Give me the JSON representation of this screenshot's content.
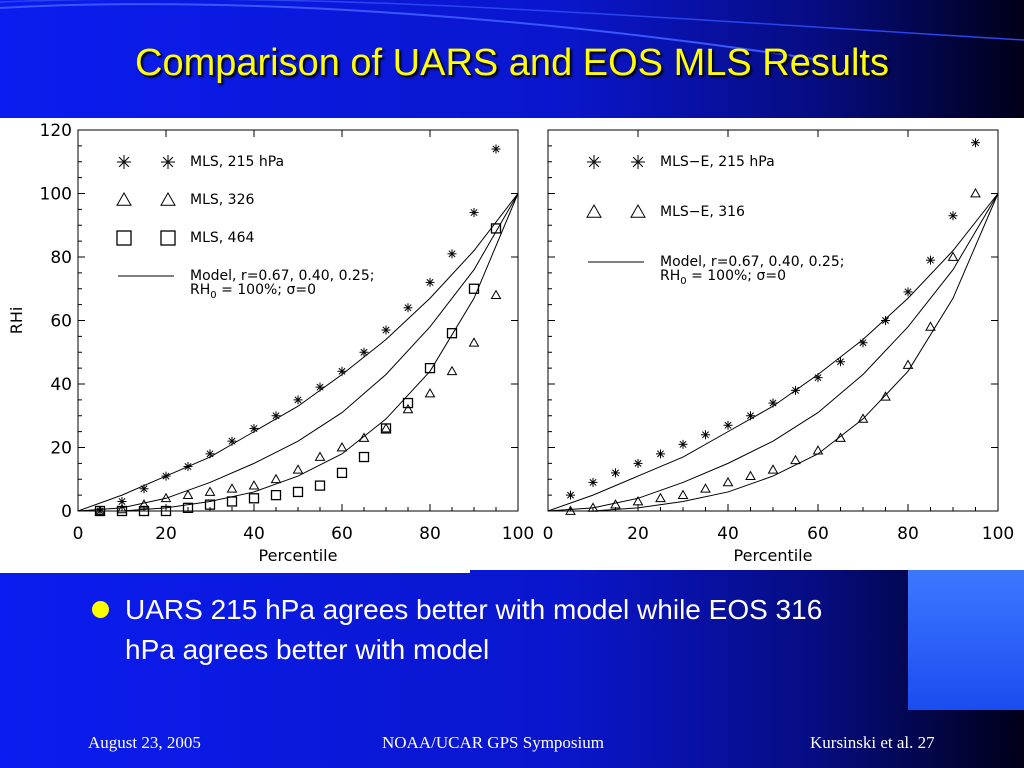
{
  "slide": {
    "title": "Comparison of UARS and EOS MLS Results",
    "bullet": "UARS 215 hPa agrees better with model while EOS 316 hPa agrees better with model",
    "footer_left": "August 23, 2005",
    "footer_center": "NOAA/UCAR GPS Symposium",
    "footer_right": "Kursinski et al. 27",
    "colors": {
      "title": "#ffff00",
      "bullet": "#ffff00",
      "background": "#0a16cc"
    }
  },
  "chart_data": [
    {
      "type": "scatter",
      "title": "",
      "xlabel": "Percentile",
      "ylabel": "RHi",
      "xlim": [
        0,
        100
      ],
      "ylim": [
        0,
        120
      ],
      "xticks": [
        "0",
        "20",
        "40",
        "60",
        "80",
        "100"
      ],
      "yticks": [
        "0",
        "20",
        "40",
        "60",
        "80",
        "100",
        "120"
      ],
      "legend_position": "top-left",
      "series": [
        {
          "name": "MLS, 215 hPa",
          "marker": "asterisk",
          "x": [
            5,
            10,
            15,
            20,
            25,
            30,
            35,
            40,
            45,
            50,
            55,
            60,
            65,
            70,
            75,
            80,
            85,
            90,
            95
          ],
          "y": [
            0,
            3,
            7,
            11,
            14,
            18,
            22,
            26,
            30,
            35,
            39,
            44,
            50,
            57,
            64,
            72,
            81,
            94,
            114
          ]
        },
        {
          "name": "MLS, 326",
          "marker": "triangle",
          "x": [
            5,
            10,
            15,
            20,
            25,
            30,
            35,
            40,
            45,
            50,
            55,
            60,
            65,
            70,
            75,
            80,
            85,
            90,
            95
          ],
          "y": [
            0,
            0.5,
            2,
            4,
            5,
            6,
            7,
            8,
            10,
            13,
            17,
            20,
            23,
            26,
            32,
            37,
            44,
            53,
            68
          ]
        },
        {
          "name": "MLS, 464",
          "marker": "square",
          "x": [
            5,
            10,
            15,
            20,
            25,
            30,
            35,
            40,
            45,
            50,
            55,
            60,
            65,
            70,
            75,
            80,
            85,
            90,
            95
          ],
          "y": [
            0,
            0,
            0,
            0,
            1,
            2,
            3,
            4,
            5,
            6,
            8,
            12,
            17,
            26,
            34,
            45,
            56,
            70,
            89
          ]
        },
        {
          "name": "Model, r=0.67, 0.40, 0.25; RH0 = 100%; σ=0",
          "marker": "line",
          "curves": [
            {
              "r": 0.67,
              "x": [
                0,
                10,
                20,
                30,
                40,
                50,
                60,
                70,
                80,
                90,
                100
              ],
              "y": [
                0,
                5,
                11,
                17,
                25,
                33,
                43,
                54,
                67,
                82,
                100
              ]
            },
            {
              "r": 0.4,
              "x": [
                0,
                10,
                20,
                30,
                40,
                50,
                60,
                70,
                80,
                90,
                100
              ],
              "y": [
                0,
                1,
                4,
                9,
                15,
                22,
                31,
                43,
                58,
                76,
                100
              ]
            },
            {
              "r": 0.25,
              "x": [
                0,
                10,
                20,
                30,
                40,
                50,
                60,
                70,
                80,
                90,
                100
              ],
              "y": [
                0,
                0,
                1,
                3,
                6,
                11,
                18,
                29,
                44,
                67,
                100
              ]
            }
          ]
        }
      ],
      "legend": {
        "sub_label": "RH0 = 100%; σ=0"
      }
    },
    {
      "type": "scatter",
      "title": "",
      "xlabel": "Percentile",
      "ylabel": "",
      "xlim": [
        0,
        100
      ],
      "ylim": [
        0,
        120
      ],
      "xticks": [
        "0",
        "20",
        "40",
        "60",
        "80",
        "100"
      ],
      "legend_position": "top-left",
      "series": [
        {
          "name": "MLS−E, 215 hPa",
          "marker": "asterisk",
          "x": [
            5,
            10,
            15,
            20,
            25,
            30,
            35,
            40,
            45,
            50,
            55,
            60,
            65,
            70,
            75,
            80,
            85,
            90,
            95
          ],
          "y": [
            5,
            9,
            12,
            15,
            18,
            21,
            24,
            27,
            30,
            34,
            38,
            42,
            47,
            53,
            60,
            69,
            79,
            93,
            116
          ]
        },
        {
          "name": "MLS−E, 316",
          "marker": "triangle",
          "x": [
            5,
            10,
            15,
            20,
            25,
            30,
            35,
            40,
            45,
            50,
            55,
            60,
            65,
            70,
            75,
            80,
            85,
            90,
            95
          ],
          "y": [
            0,
            1,
            2,
            3,
            4,
            5,
            7,
            9,
            11,
            13,
            16,
            19,
            23,
            29,
            36,
            46,
            58,
            80,
            100
          ]
        },
        {
          "name": "Model, r=0.67, 0.40, 0.25; RH0 = 100%; σ=0",
          "marker": "line",
          "curves": [
            {
              "r": 0.67,
              "x": [
                0,
                10,
                20,
                30,
                40,
                50,
                60,
                70,
                80,
                90,
                100
              ],
              "y": [
                0,
                5,
                11,
                17,
                25,
                33,
                43,
                54,
                67,
                82,
                100
              ]
            },
            {
              "r": 0.4,
              "x": [
                0,
                10,
                20,
                30,
                40,
                50,
                60,
                70,
                80,
                90,
                100
              ],
              "y": [
                0,
                1,
                4,
                9,
                15,
                22,
                31,
                43,
                58,
                76,
                100
              ]
            },
            {
              "r": 0.25,
              "x": [
                0,
                10,
                20,
                30,
                40,
                50,
                60,
                70,
                80,
                90,
                100
              ],
              "y": [
                0,
                0,
                1,
                3,
                6,
                11,
                18,
                29,
                44,
                67,
                100
              ]
            }
          ]
        }
      ],
      "legend": {
        "sub_label": "RH0 = 100%; σ=0"
      }
    }
  ]
}
